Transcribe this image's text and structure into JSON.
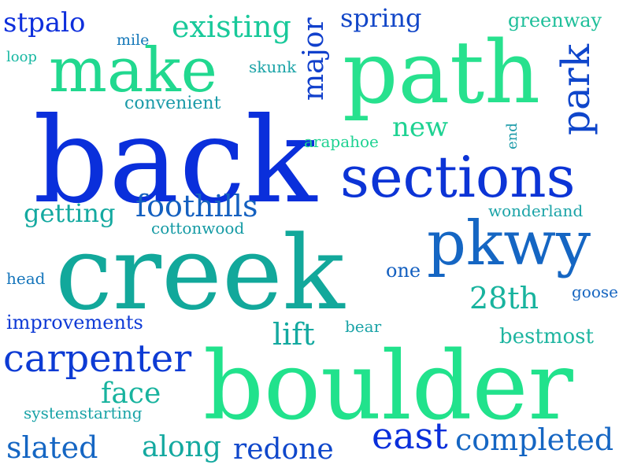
{
  "colors": {
    "background": "#ffffff",
    "palette": [
      "#0a35d8",
      "#0e4fc6",
      "#1578c0",
      "#12a59a",
      "#17c38e",
      "#1ee58c"
    ]
  },
  "words": [
    {
      "text": "stpalo",
      "color": "#0e2fdc"
    },
    {
      "text": "existing",
      "color": "#19c99a"
    },
    {
      "text": "major",
      "color": "#1140cc"
    },
    {
      "text": "spring",
      "color": "#1347c8"
    },
    {
      "text": "greenway",
      "color": "#1fbf9a"
    },
    {
      "text": "mile",
      "color": "#1477b8"
    },
    {
      "text": "make",
      "color": "#21d88f"
    },
    {
      "text": "path",
      "color": "#27e18e"
    },
    {
      "text": "loop",
      "color": "#17b8a2"
    },
    {
      "text": "skunk",
      "color": "#1aa3a7"
    },
    {
      "text": "park",
      "color": "#0f46cb"
    },
    {
      "text": "convenient",
      "color": "#1a9aa8"
    },
    {
      "text": "back",
      "color": "#0a2fdb"
    },
    {
      "text": "new",
      "color": "#1ed292"
    },
    {
      "text": "end",
      "color": "#1a9aa8"
    },
    {
      "text": "arapahoe",
      "color": "#1ed292"
    },
    {
      "text": "sections",
      "color": "#0c34d6"
    },
    {
      "text": "foothills",
      "color": "#1460c0"
    },
    {
      "text": "getting",
      "color": "#14a9a0"
    },
    {
      "text": "wonderland",
      "color": "#1aa3a7"
    },
    {
      "text": "cottonwood",
      "color": "#149aa4"
    },
    {
      "text": "pkwy",
      "color": "#1566c3"
    },
    {
      "text": "creek",
      "color": "#12a89b"
    },
    {
      "text": "head",
      "color": "#1575bb"
    },
    {
      "text": "one",
      "color": "#1460c0"
    },
    {
      "text": "28th",
      "color": "#18b39e"
    },
    {
      "text": "goose",
      "color": "#1565c0"
    },
    {
      "text": "improvements",
      "color": "#0e3ad6"
    },
    {
      "text": "lift",
      "color": "#14a9a0"
    },
    {
      "text": "bear",
      "color": "#1aa3a7"
    },
    {
      "text": "bestmost",
      "color": "#1eb5a0"
    },
    {
      "text": "carpenter",
      "color": "#0d3bd4"
    },
    {
      "text": "boulder",
      "color": "#21e28c"
    },
    {
      "text": "face",
      "color": "#18b39e"
    },
    {
      "text": "systemstarting",
      "color": "#1aa3a7"
    },
    {
      "text": "slated",
      "color": "#1566c3"
    },
    {
      "text": "along",
      "color": "#14a9a0"
    },
    {
      "text": "redone",
      "color": "#0f47cb"
    },
    {
      "text": "east",
      "color": "#0a2fdb"
    },
    {
      "text": "completed",
      "color": "#1566c3"
    }
  ]
}
